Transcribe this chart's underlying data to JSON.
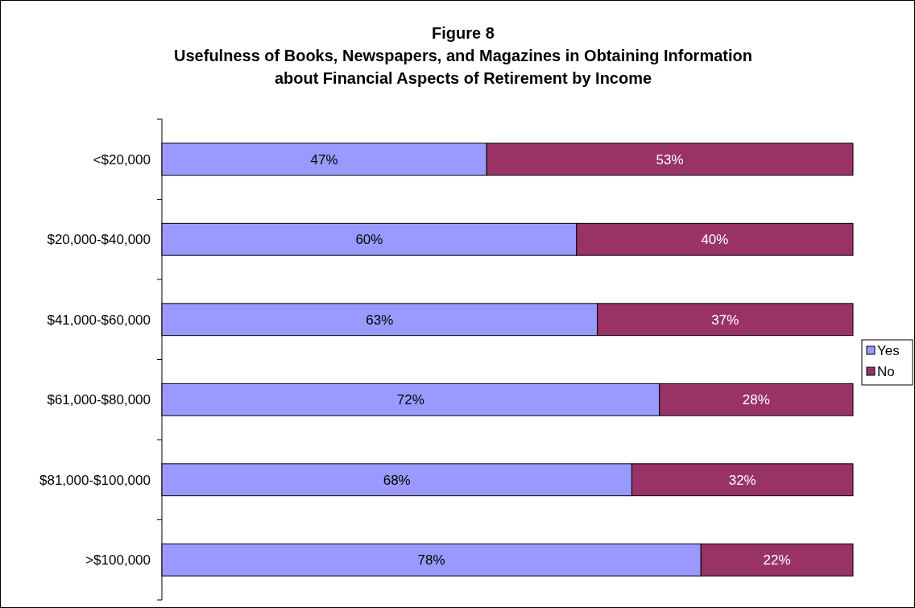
{
  "chart_data": {
    "type": "bar",
    "orientation": "horizontal",
    "stacked": true,
    "title": "Figure 8\nUsefulness of Books, Newspapers, and Magazines in Obtaining Information\nabout Financial Aspects of Retirement by Income",
    "categories": [
      "<$20,000",
      "$20,000-$40,000",
      "$41,000-$60,000",
      "$61,000-$80,000",
      "$81,000-$100,000",
      ">$100,000"
    ],
    "series": [
      {
        "name": "Yes",
        "color": "#9999ff",
        "values": [
          47,
          60,
          63,
          72,
          68,
          78
        ],
        "value_labels": [
          "47%",
          "60%",
          "63%",
          "72%",
          "68%",
          "78%"
        ]
      },
      {
        "name": "No",
        "color": "#993366",
        "values": [
          53,
          40,
          37,
          28,
          32,
          22
        ],
        "value_labels": [
          "53%",
          "40%",
          "37%",
          "28%",
          "32%",
          "22%"
        ]
      }
    ],
    "legend": "right"
  }
}
